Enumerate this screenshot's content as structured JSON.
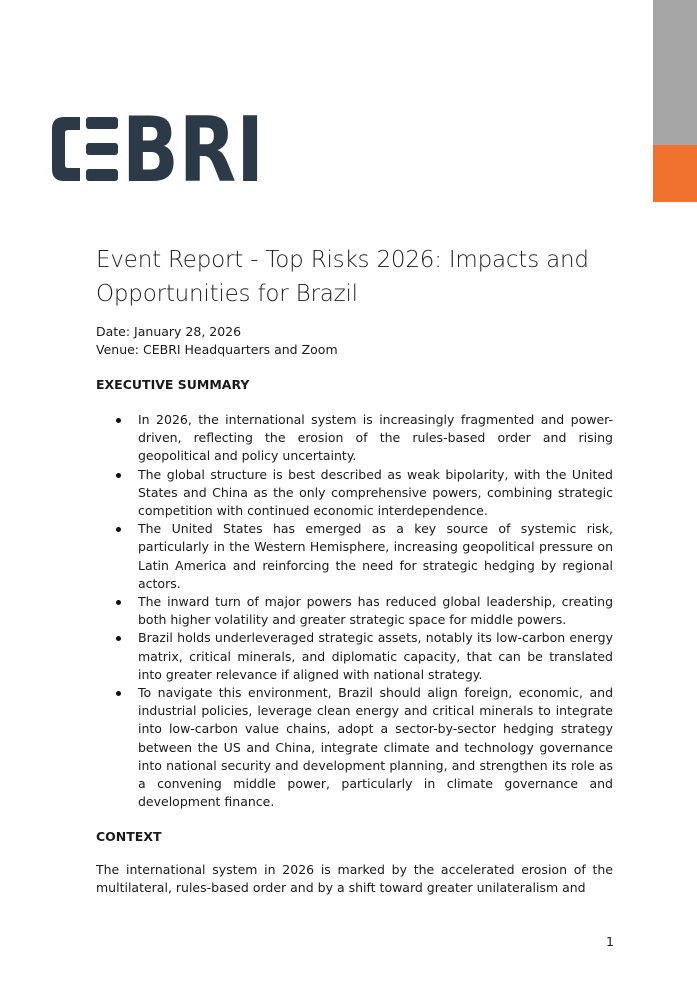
{
  "colors": {
    "gray_bar": "#a6a6a6",
    "orange_bar": "#f0722e",
    "logo": "#2c3a47"
  },
  "logo": {
    "text": "CEBRI",
    "c": "C",
    "e": "E",
    "rest": "BRI"
  },
  "title": "Event Report - Top Risks 2026: Impacts and Opportunities for Brazil",
  "date": "Date: January 28, 2026",
  "venue": "Venue: CEBRI Headquarters and Zoom",
  "executive_summary": {
    "heading": "EXECUTIVE SUMMARY",
    "bullets": [
      "In 2026, the international system is increasingly fragmented and power-driven, reflecting the erosion of the rules-based order and rising geopolitical and policy uncertainty.",
      "The global structure is best described as weak bipolarity, with the United States and China as the only comprehensive powers, combining strategic competition with continued economic interdependence.",
      "The United States has emerged as a key source of systemic risk, particularly in the Western Hemisphere, increasing geopolitical pressure on Latin America and reinforcing the need for strategic hedging by regional actors.",
      "The inward turn of major powers has reduced global leadership, creating both higher volatility and greater strategic space for middle powers.",
      "Brazil holds underleveraged strategic assets, notably its low-carbon energy matrix, critical minerals, and diplomatic capacity, that can be translated into greater relevance if aligned with national strategy.",
      "To navigate this environment, Brazil should align foreign, economic, and industrial policies, leverage clean energy and critical minerals to integrate into low-carbon value chains, adopt a sector-by-sector hedging strategy between the US and China, integrate climate and technology governance into national security and development planning, and strengthen its role as a convening middle power, particularly in climate governance and development finance."
    ]
  },
  "context": {
    "heading": "CONTEXT",
    "paragraph": "The international system in 2026 is marked by the accelerated erosion of the multilateral, rules-based order and by a shift toward greater unilateralism and"
  },
  "page_number": "1"
}
